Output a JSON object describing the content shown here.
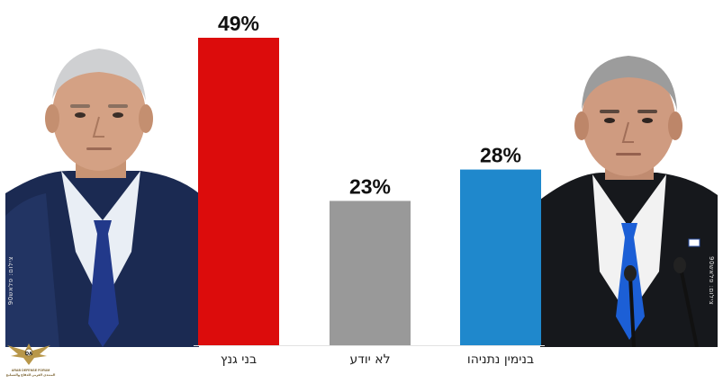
{
  "chart_data": {
    "type": "bar",
    "categories": [
      "בני גנץ",
      "לא יודע",
      "בנימין נתניהו"
    ],
    "values": [
      49,
      23,
      28
    ],
    "value_labels": [
      "49%",
      "23%",
      "28%"
    ],
    "colors": [
      "#dc0c0c",
      "#999999",
      "#1f88cc"
    ],
    "ylim": [
      0,
      50
    ],
    "title": "",
    "xlabel": "",
    "ylabel": "",
    "grid": false,
    "legend": "none"
  },
  "photos": {
    "left": {
      "icon": "man-portrait-left"
    },
    "right": {
      "icon": "man-portrait-right"
    }
  },
  "credits": {
    "left": "צילום: פלאש90",
    "right": "צילום: פלאש90"
  },
  "logo": {
    "icon": "eagle-crest-icon",
    "line1": "ARAB DEFENSE FORUM",
    "line2": "المنتدى العربي للدفاع والتسليح"
  }
}
